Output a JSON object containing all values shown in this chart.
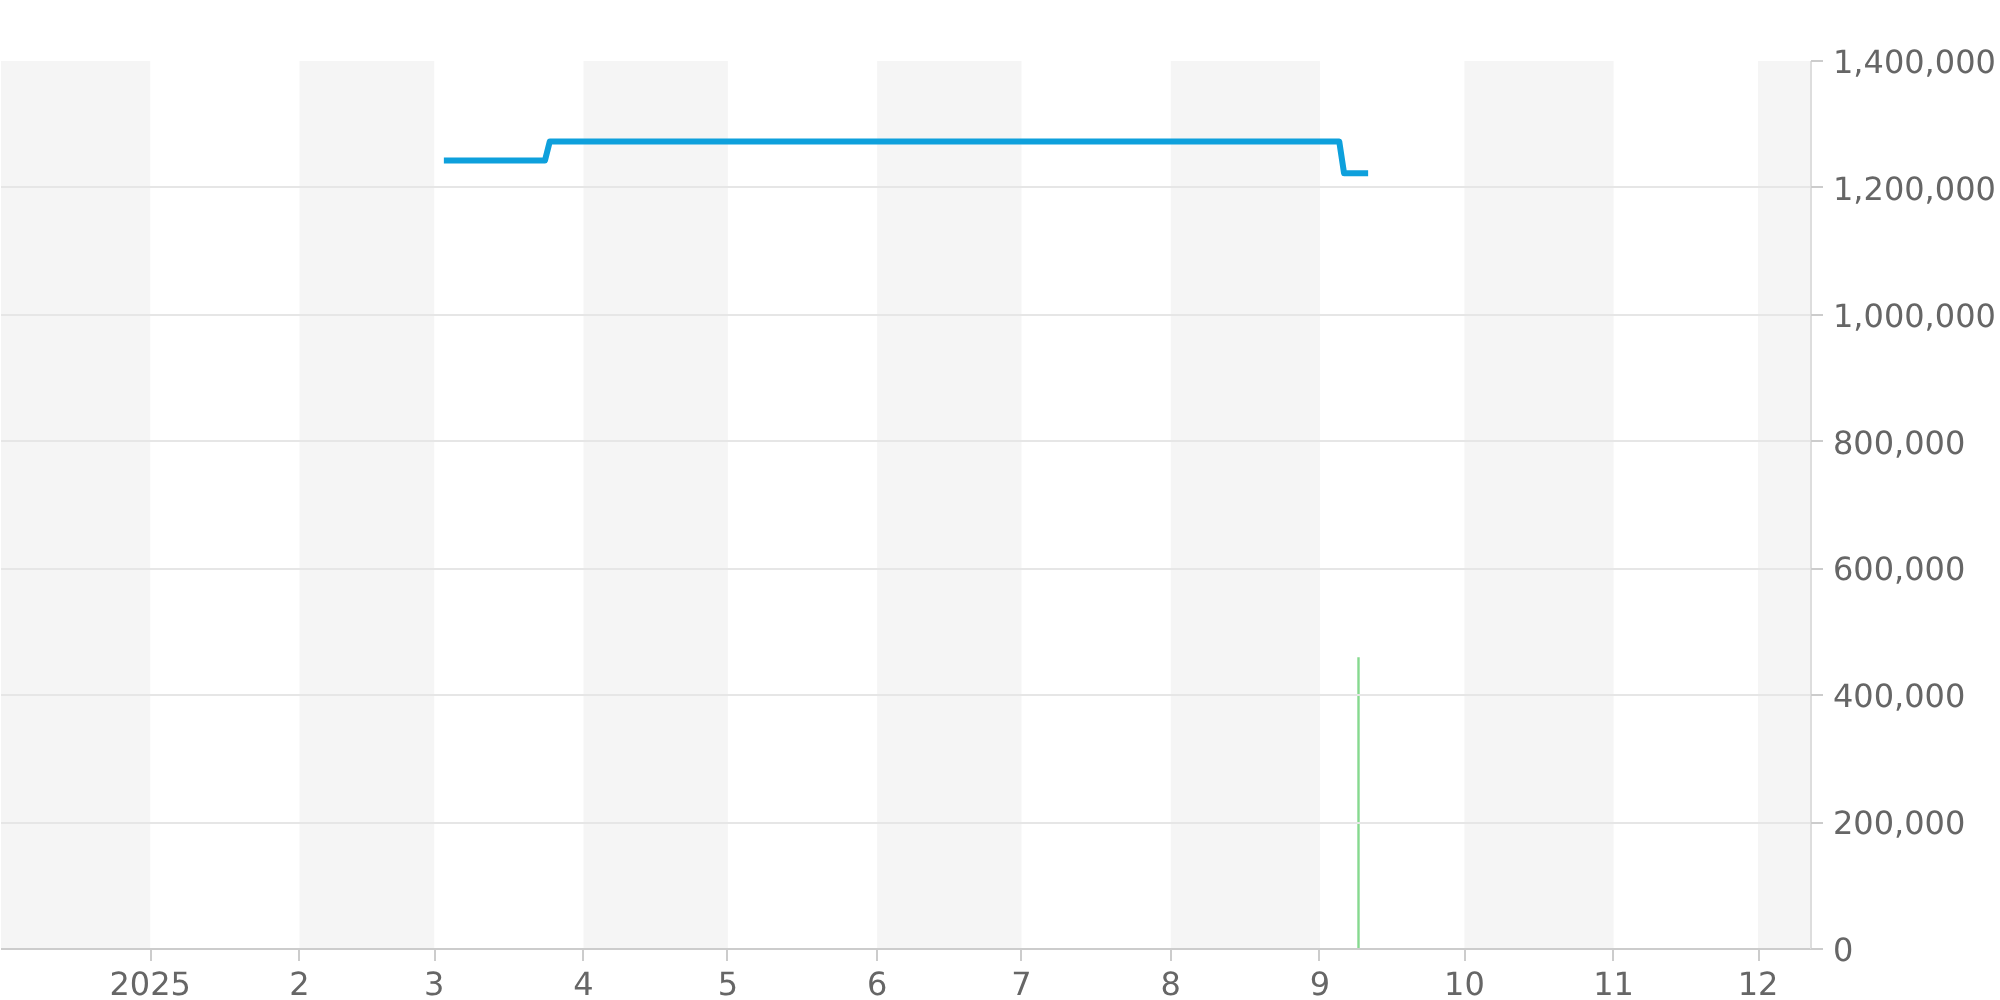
{
  "chart_data": {
    "type": "line",
    "series": [
      {
        "color": "#0ea0dc",
        "x": [
          "2025-03-03",
          "2025-03-24",
          "2025-03-25",
          "2025-09-05",
          "2025-09-06",
          "2025-09-11"
        ],
        "values": [
          1243000,
          1243000,
          1273000,
          1273000,
          1223000,
          1223000
        ]
      },
      {
        "type": "bar",
        "color": "#86d98f",
        "x": [
          "2025-09-09"
        ],
        "values": [
          460000
        ]
      }
    ],
    "xlim": [
      "2024-12-01",
      "2025-12-12"
    ],
    "xticks": [
      {
        "value": "2025-01-01",
        "label": "2025"
      },
      {
        "value": "2025-02-01",
        "label": "2"
      },
      {
        "value": "2025-03-01",
        "label": "3"
      },
      {
        "value": "2025-04-01",
        "label": "4"
      },
      {
        "value": "2025-05-01",
        "label": "5"
      },
      {
        "value": "2025-06-01",
        "label": "6"
      },
      {
        "value": "2025-07-01",
        "label": "7"
      },
      {
        "value": "2025-08-01",
        "label": "8"
      },
      {
        "value": "2025-09-01",
        "label": "9"
      },
      {
        "value": "2025-10-01",
        "label": "10"
      },
      {
        "value": "2025-11-01",
        "label": "11"
      },
      {
        "value": "2025-12-01",
        "label": "12"
      }
    ],
    "ylim": [
      0,
      1400000
    ],
    "yticks": [
      {
        "value": 0,
        "label": "0"
      },
      {
        "value": 200000,
        "label": "200,000"
      },
      {
        "value": 400000,
        "label": "400,000"
      },
      {
        "value": 600000,
        "label": "600,000"
      },
      {
        "value": 800000,
        "label": "800,000"
      },
      {
        "value": 1000000,
        "label": "1,000,000"
      },
      {
        "value": 1200000,
        "label": "1,200,000"
      },
      {
        "value": 1400000,
        "label": "1,400,000"
      }
    ],
    "grid": "y",
    "bands": [
      {
        "axis": "x",
        "from": "2024-12-01",
        "to": "2025-01-01",
        "color": "#f5f5f5"
      },
      {
        "axis": "x",
        "from": "2025-02-01",
        "to": "2025-03-01",
        "color": "#f5f5f5"
      },
      {
        "axis": "x",
        "from": "2025-04-01",
        "to": "2025-05-01",
        "color": "#f5f5f5"
      },
      {
        "axis": "x",
        "from": "2025-06-01",
        "to": "2025-07-01",
        "color": "#f5f5f5"
      },
      {
        "axis": "x",
        "from": "2025-08-01",
        "to": "2025-09-01",
        "color": "#f5f5f5"
      },
      {
        "axis": "x",
        "from": "2025-10-01",
        "to": "2025-11-01",
        "color": "#f5f5f5"
      },
      {
        "axis": "x",
        "from": "2025-12-01",
        "to": "2025-12-12",
        "color": "#f5f5f5"
      }
    ]
  }
}
